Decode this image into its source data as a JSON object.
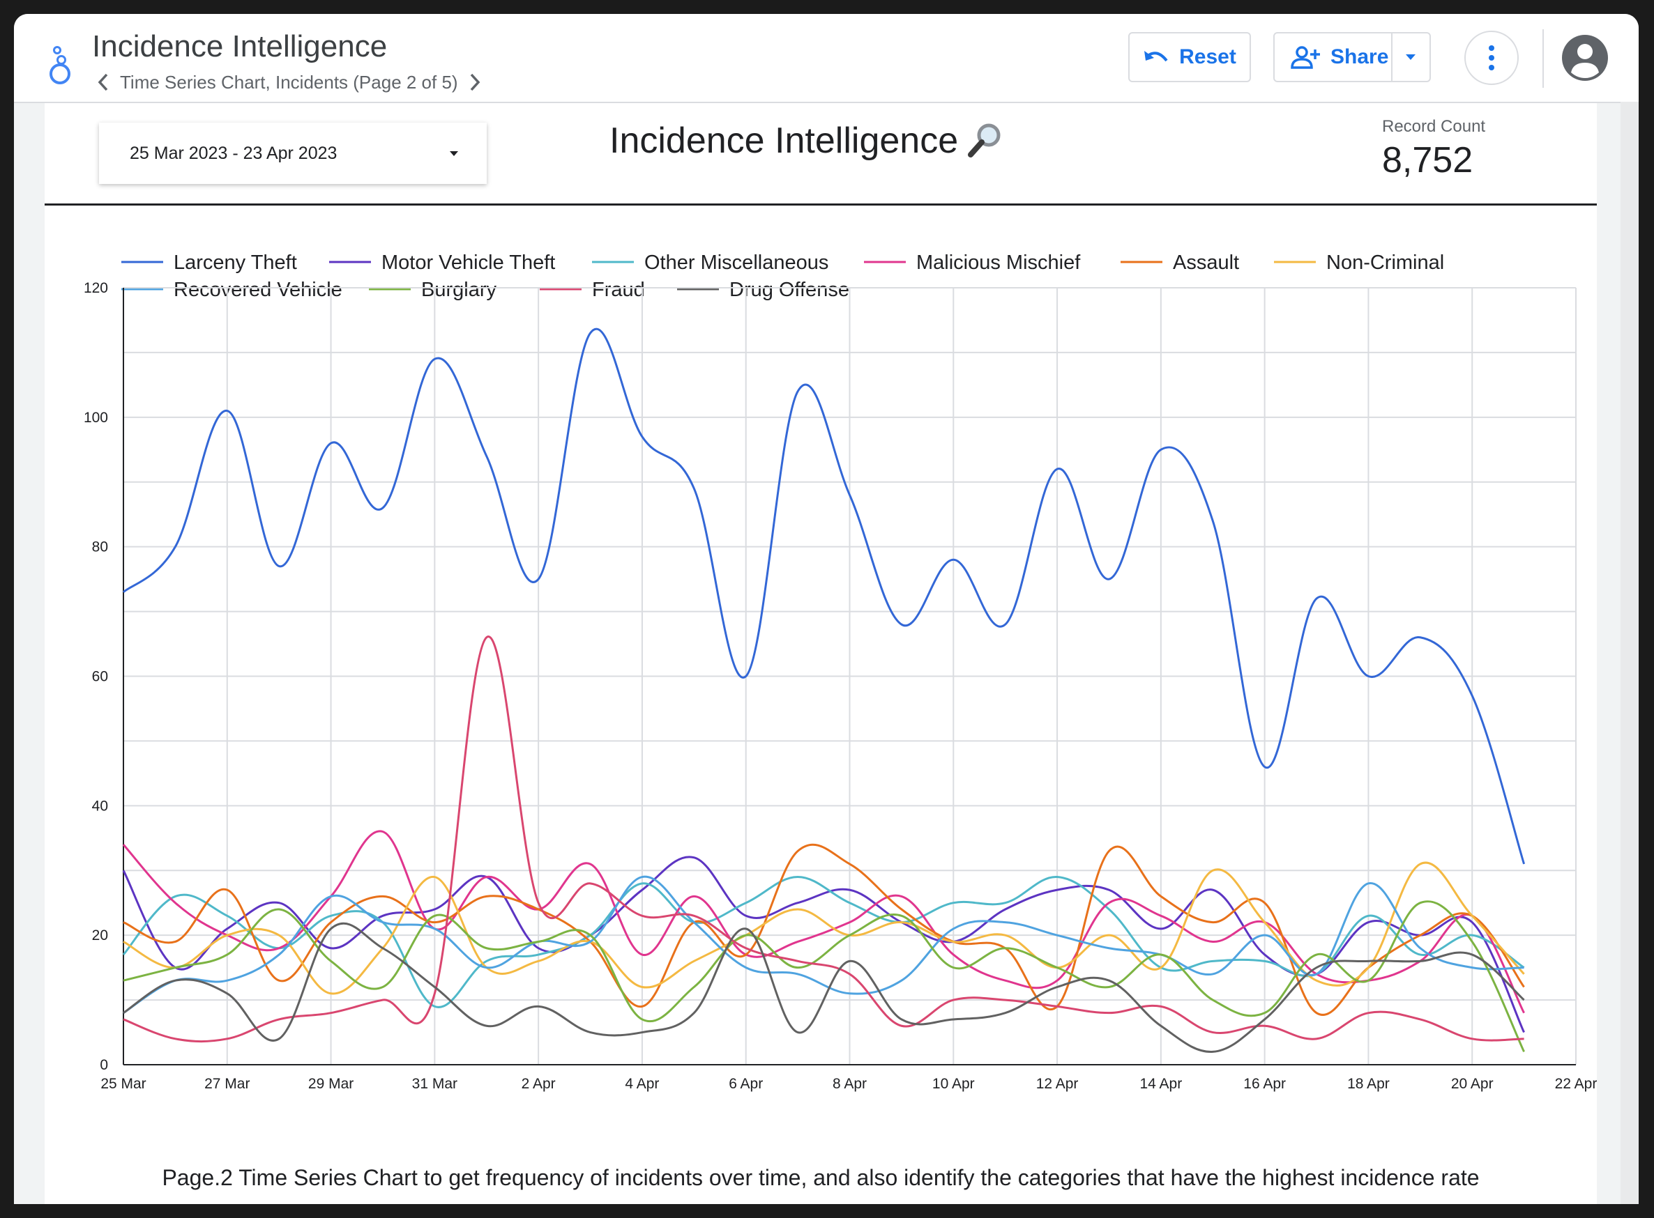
{
  "header": {
    "app_title": "Incidence Intelligence",
    "page_label": "Time Series Chart, Incidents (Page 2 of 5)",
    "reset_label": "Reset",
    "share_label": "Share"
  },
  "report": {
    "date_range": "25 Mar 2023 - 23 Apr 2023",
    "title": "Incidence Intelligence",
    "record_count_label": "Record Count",
    "record_count_value": "8,752",
    "caption": "Page.2 Time Series Chart to get frequency of incidents over time, and also identify the categories that have the highest incidence rate"
  },
  "icons": {
    "logo": "looker-studio-logo-icon",
    "prev": "chevron-left-icon",
    "next": "chevron-right-icon",
    "reset": "undo-icon",
    "share": "person-add-icon",
    "share_dropdown": "caret-down-icon",
    "more": "more-vert-icon",
    "avatar": "account-circle-icon",
    "date_dropdown": "caret-down-icon",
    "title_emoji": "magnifier-icon"
  },
  "chart_data": {
    "type": "line",
    "xlabel": "",
    "ylabel": "",
    "ylim": [
      0,
      120
    ],
    "yticks": [
      0,
      20,
      40,
      60,
      80,
      100,
      120
    ],
    "xticks": [
      "25 Mar",
      "27 Mar",
      "29 Mar",
      "31 Mar",
      "2 Apr",
      "4 Apr",
      "6 Apr",
      "8 Apr",
      "10 Apr",
      "12 Apr",
      "14 Apr",
      "16 Apr",
      "18 Apr",
      "20 Apr",
      "22 Apr"
    ],
    "x": [
      "25 Mar",
      "26 Mar",
      "27 Mar",
      "28 Mar",
      "29 Mar",
      "30 Mar",
      "31 Mar",
      "1 Apr",
      "2 Apr",
      "3 Apr",
      "4 Apr",
      "5 Apr",
      "6 Apr",
      "7 Apr",
      "8 Apr",
      "9 Apr",
      "10 Apr",
      "11 Apr",
      "12 Apr",
      "13 Apr",
      "14 Apr",
      "15 Apr",
      "16 Apr",
      "17 Apr",
      "18 Apr",
      "19 Apr",
      "20 Apr",
      "21 Apr"
    ],
    "grid": true,
    "legend_position": "top-left",
    "series": [
      {
        "name": "Larceny Theft",
        "color": "#3367d6",
        "values": [
          73,
          80,
          101,
          77,
          96,
          86,
          109,
          94,
          75,
          113,
          97,
          89,
          60,
          104,
          88,
          68,
          78,
          68,
          92,
          75,
          95,
          84,
          46,
          72,
          60,
          66,
          57,
          31
        ]
      },
      {
        "name": "Motor Vehicle Theft",
        "color": "#5c34c2",
        "values": [
          30,
          15,
          21,
          25,
          18,
          23,
          24,
          29,
          18,
          20,
          27,
          32,
          23,
          25,
          27,
          22,
          19,
          24,
          27,
          27,
          21,
          27,
          17,
          14,
          22,
          20,
          22,
          5
        ]
      },
      {
        "name": "Other Miscellaneous",
        "color": "#4fb8c9",
        "values": [
          17,
          26,
          23,
          18,
          23,
          22,
          9,
          16,
          17,
          20,
          28,
          22,
          25,
          29,
          25,
          22,
          25,
          25,
          29,
          24,
          15,
          16,
          16,
          14,
          23,
          17,
          20,
          15
        ]
      },
      {
        "name": "Malicious Mischief",
        "color": "#e0358e",
        "values": [
          34,
          25,
          20,
          18,
          26,
          36,
          21,
          29,
          24,
          31,
          17,
          26,
          17,
          19,
          22,
          26,
          17,
          13,
          13,
          25,
          23,
          19,
          22,
          14,
          13,
          16,
          23,
          8
        ]
      },
      {
        "name": "Assault",
        "color": "#e8711a",
        "values": [
          22,
          19,
          27,
          13,
          22,
          26,
          22,
          26,
          24,
          19,
          9,
          22,
          17,
          33,
          31,
          24,
          19,
          18,
          9,
          33,
          26,
          22,
          25,
          8,
          15,
          20,
          23,
          12
        ]
      },
      {
        "name": "Non-Criminal",
        "color": "#f4b942",
        "values": [
          19,
          15,
          20,
          20,
          11,
          18,
          29,
          15,
          16,
          19,
          12,
          16,
          20,
          24,
          20,
          22,
          19,
          20,
          15,
          20,
          15,
          30,
          22,
          13,
          15,
          31,
          23,
          14
        ]
      },
      {
        "name": "Recovered Vehicle",
        "color": "#4fa3e0",
        "values": [
          8,
          13,
          13,
          17,
          26,
          22,
          21,
          15,
          19,
          19,
          29,
          22,
          15,
          14,
          11,
          13,
          21,
          22,
          20,
          18,
          17,
          14,
          20,
          14,
          28,
          18,
          15,
          15
        ]
      },
      {
        "name": "Burglary",
        "color": "#7cb342",
        "values": [
          13,
          15,
          17,
          24,
          16,
          12,
          23,
          18,
          19,
          20,
          7,
          12,
          20,
          15,
          20,
          23,
          15,
          18,
          15,
          12,
          17,
          10,
          8,
          17,
          13,
          25,
          19,
          2
        ]
      },
      {
        "name": "Fraud",
        "color": "#d9466f",
        "values": [
          7,
          4,
          4,
          7,
          8,
          10,
          11,
          66,
          25,
          28,
          23,
          23,
          18,
          16,
          14,
          6,
          10,
          10,
          9,
          8,
          9,
          5,
          6,
          4,
          8,
          7,
          4,
          4
        ]
      },
      {
        "name": "Drug Offense",
        "color": "#616161",
        "values": [
          8,
          13,
          11,
          4,
          21,
          18,
          12,
          6,
          9,
          5,
          5,
          8,
          21,
          5,
          16,
          7,
          7,
          8,
          12,
          13,
          6,
          2,
          7,
          15,
          16,
          16,
          17,
          10
        ]
      }
    ]
  }
}
